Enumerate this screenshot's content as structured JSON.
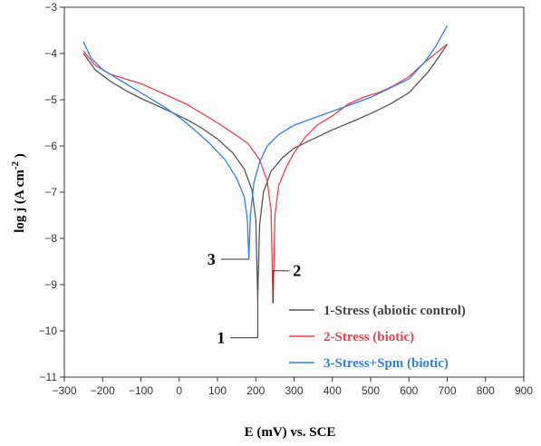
{
  "chart_data": {
    "type": "line",
    "xlabel": "E (mV) vs. SCE",
    "ylabel_main": "log j (A cm",
    "ylabel_sup": "-2",
    "ylabel_end": " )",
    "xlim": [
      -300,
      900
    ],
    "ylim": [
      -11,
      -3
    ],
    "x_ticks": [
      -300,
      -200,
      -100,
      0,
      100,
      200,
      300,
      400,
      500,
      600,
      700,
      800,
      900
    ],
    "x_tick_labels": [
      "−300",
      "−200",
      "−100",
      "0",
      "100",
      "200",
      "300",
      "400",
      "500",
      "600",
      "700",
      "800",
      "900"
    ],
    "y_ticks": [
      -11,
      -10,
      -9,
      -8,
      -7,
      -6,
      -5,
      -4,
      -3
    ],
    "y_tick_labels": [
      "−11",
      "−10",
      "−9",
      "−8",
      "−7",
      "−6",
      "−5",
      "−4",
      "−3"
    ],
    "grid": false,
    "legend_position": "bottom-right",
    "legend": [
      {
        "label": "1-Stress (abiotic control)",
        "color": "#555555"
      },
      {
        "label": "2-Stress (biotic)",
        "color": "#e8414e"
      },
      {
        "label": "3-Stress+Spm (biotic)",
        "color": "#2f7fe6"
      }
    ],
    "callouts": [
      {
        "text": "1",
        "series": 0,
        "corner": [
          205,
          -10.15
        ],
        "text_at": [
          -5,
          -10.15
        ]
      },
      {
        "text": "2",
        "series": 1,
        "corner": [
          245,
          -8.7
        ],
        "text_at": [
          245,
          -8.7
        ]
      },
      {
        "text": "3",
        "series": 2,
        "corner": [
          180,
          -8.45
        ],
        "text_at": [
          -5,
          -8.45
        ]
      }
    ],
    "series": [
      {
        "name": "1-Stress (abiotic control)",
        "color": "#555555",
        "x": [
          -250,
          -220,
          -180,
          -140,
          -100,
          -60,
          -20,
          20,
          60,
          100,
          140,
          170,
          190,
          200,
          205,
          210,
          220,
          240,
          270,
          300,
          350,
          400,
          450,
          500,
          550,
          600,
          650,
          680,
          700
        ],
        "y": [
          -4.0,
          -4.35,
          -4.6,
          -4.8,
          -4.97,
          -5.12,
          -5.27,
          -5.43,
          -5.62,
          -5.85,
          -6.15,
          -6.5,
          -6.95,
          -7.6,
          -9.3,
          -7.7,
          -7.0,
          -6.55,
          -6.25,
          -6.05,
          -5.85,
          -5.65,
          -5.48,
          -5.3,
          -5.1,
          -4.85,
          -4.4,
          -4.05,
          -3.8
        ]
      },
      {
        "name": "2-Stress (biotic)",
        "color": "#e8414e",
        "x": [
          -250,
          -220,
          -180,
          -140,
          -100,
          -60,
          -20,
          20,
          60,
          100,
          140,
          180,
          210,
          230,
          240,
          245,
          250,
          260,
          280,
          300,
          330,
          360,
          400,
          440,
          480,
          520,
          560,
          600,
          640,
          670,
          700
        ],
        "y": [
          -3.95,
          -4.25,
          -4.45,
          -4.55,
          -4.65,
          -4.8,
          -4.95,
          -5.1,
          -5.3,
          -5.5,
          -5.72,
          -5.95,
          -6.3,
          -6.75,
          -7.4,
          -9.4,
          -7.5,
          -6.85,
          -6.45,
          -6.15,
          -5.8,
          -5.55,
          -5.35,
          -5.1,
          -4.95,
          -4.85,
          -4.7,
          -4.5,
          -4.2,
          -4.0,
          -3.8
        ]
      },
      {
        "name": "3-Stress+Spm (biotic)",
        "color": "#2f7fe6",
        "x": [
          -250,
          -230,
          -200,
          -160,
          -120,
          -80,
          -40,
          0,
          40,
          80,
          120,
          150,
          170,
          178,
          182,
          186,
          195,
          210,
          230,
          260,
          300,
          350,
          400,
          450,
          500,
          550,
          600,
          640,
          670,
          700
        ],
        "y": [
          -3.75,
          -4.1,
          -4.35,
          -4.55,
          -4.75,
          -4.95,
          -5.15,
          -5.38,
          -5.65,
          -5.95,
          -6.3,
          -6.7,
          -7.1,
          -7.6,
          -8.45,
          -7.5,
          -6.8,
          -6.35,
          -6.0,
          -5.75,
          -5.55,
          -5.4,
          -5.25,
          -5.1,
          -4.95,
          -4.75,
          -4.55,
          -4.2,
          -3.85,
          -3.4
        ]
      }
    ]
  }
}
